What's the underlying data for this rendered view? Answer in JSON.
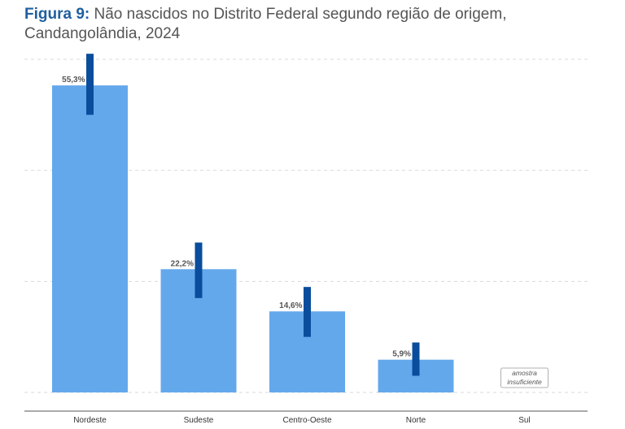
{
  "title": {
    "prefix": "Figura 9:",
    "text": "Não nascidos no Distrito Federal segundo região de origem,",
    "line2": "Candangolândia, 2024"
  },
  "chart_data": {
    "type": "bar",
    "categories": [
      "Nordeste",
      "Sudeste",
      "Centro-Oeste",
      "Norte",
      "Sul"
    ],
    "values": [
      55.3,
      22.2,
      14.6,
      5.9,
      null
    ],
    "value_labels": [
      "55,3%",
      "22,2%",
      "14,6%",
      "5,9%",
      ""
    ],
    "error_bars": [
      [
        50.0,
        61.0
      ],
      [
        17.0,
        27.0
      ],
      [
        10.0,
        19.0
      ],
      [
        3.0,
        9.0
      ],
      null
    ],
    "notes": {
      "Sul": [
        "amostra",
        "insuficiente"
      ]
    },
    "ylim": [
      0,
      60
    ],
    "gridlines": [
      0,
      20,
      40,
      60
    ],
    "grid": true,
    "legend": "none",
    "bar_color": "#64a8ec",
    "error_bar_color": "#0a4d9c"
  }
}
